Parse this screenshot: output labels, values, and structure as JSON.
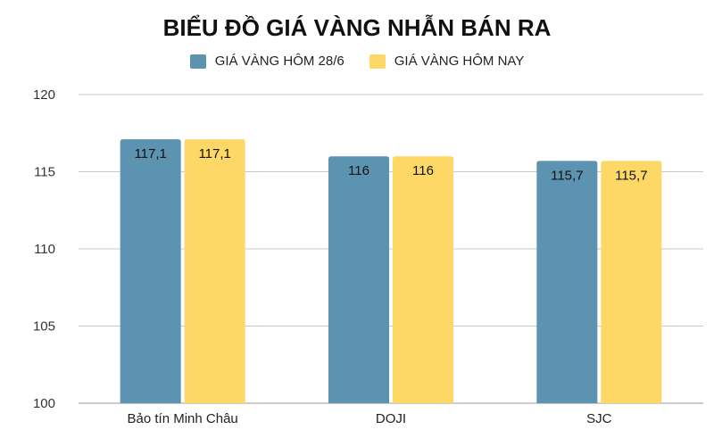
{
  "chart_data": {
    "type": "bar",
    "title": "BIỂU ĐỒ GIÁ VÀNG NHẪN BÁN RA",
    "categories": [
      "Bảo tín Minh Châu",
      "DOJI",
      "SJC"
    ],
    "series": [
      {
        "name": "GIÁ VÀNG HÔM 28/6",
        "values": [
          117.1,
          116,
          115.7
        ],
        "labels": [
          "117,1",
          "116",
          "115,7"
        ],
        "color": "#5b93b0"
      },
      {
        "name": "GIÁ VÀNG HÔM NAY",
        "values": [
          117.1,
          116,
          115.7
        ],
        "labels": [
          "117,1",
          "116",
          "115,7"
        ],
        "color": "#fdd867"
      }
    ],
    "ylim": [
      100,
      120
    ],
    "yticks": [
      100,
      105,
      110,
      115,
      120
    ],
    "legend_position": "top",
    "grid": true,
    "xlabel": "",
    "ylabel": ""
  }
}
